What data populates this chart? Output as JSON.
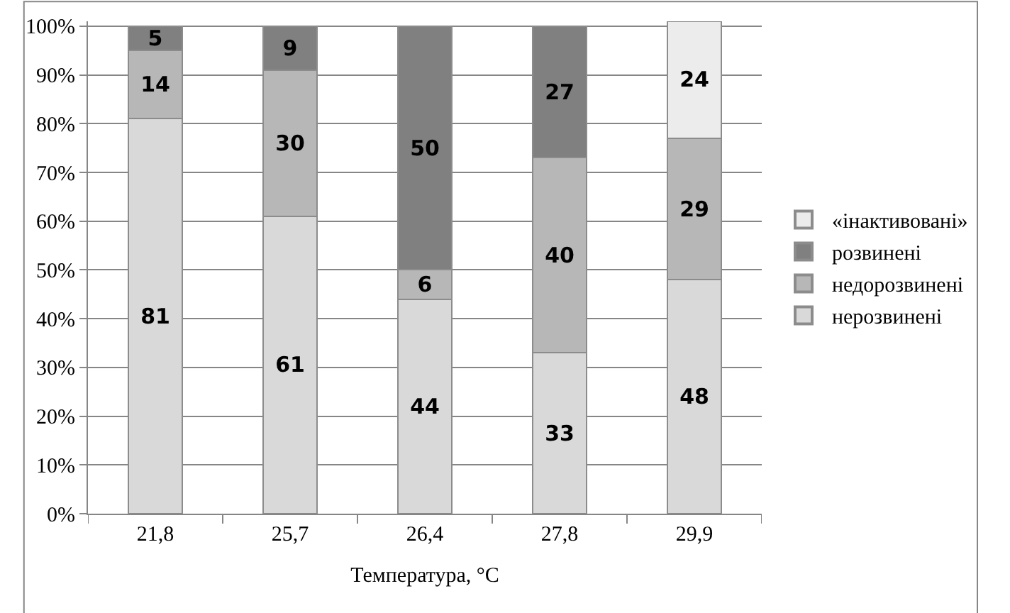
{
  "chart_data": {
    "type": "bar",
    "stacked": true,
    "xlabel": "Температура, °C",
    "categories": [
      "21,8",
      "25,7",
      "26,4",
      "27,8",
      "29,9"
    ],
    "series": [
      {
        "name": "нерозвинені",
        "color": "#d9d9d9",
        "values": [
          81,
          61,
          44,
          33,
          48
        ]
      },
      {
        "name": "недорозвинені",
        "color": "#b7b7b7",
        "values": [
          14,
          30,
          6,
          40,
          29
        ]
      },
      {
        "name": "розвинені",
        "color": "#808080",
        "values": [
          5,
          9,
          50,
          27,
          null
        ]
      },
      {
        "name": "«інактивовані»",
        "color": "#ececec",
        "values": [
          null,
          null,
          null,
          null,
          24
        ]
      }
    ],
    "ylim": [
      0,
      101
    ],
    "yticks": [
      {
        "value": 0,
        "label": "0%"
      },
      {
        "value": 10,
        "label": "10%"
      },
      {
        "value": 20,
        "label": "20%"
      },
      {
        "value": 30,
        "label": "30%"
      },
      {
        "value": 40,
        "label": "40%"
      },
      {
        "value": 50,
        "label": "50%"
      },
      {
        "value": 60,
        "label": "60%"
      },
      {
        "value": 70,
        "label": "70%"
      },
      {
        "value": 80,
        "label": "80%"
      },
      {
        "value": 90,
        "label": "90%"
      },
      {
        "value": 100,
        "label": "100%"
      }
    ],
    "grid": "y",
    "legend": "right",
    "data_labels": true
  }
}
